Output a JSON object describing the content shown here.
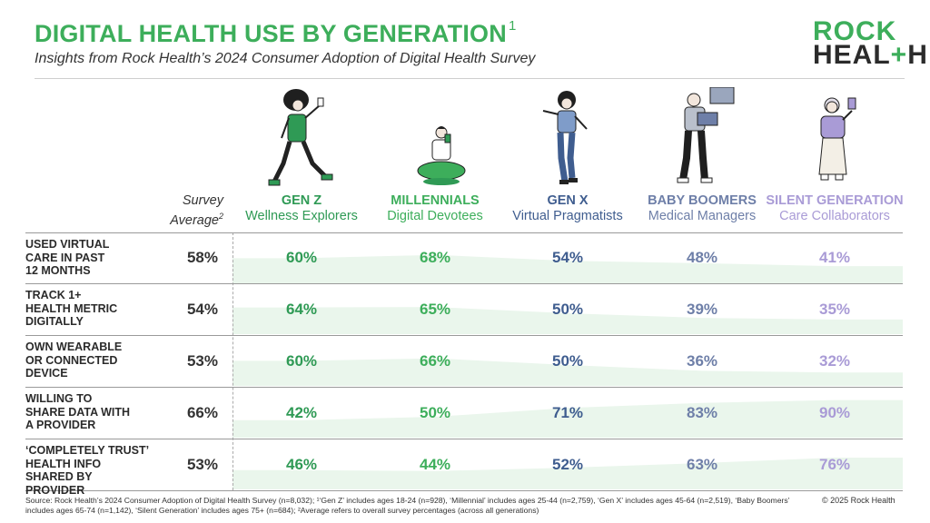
{
  "header": {
    "title": "DIGITAL HEALTH USE BY GENERATION",
    "title_sup": "1",
    "subtitle": "Insights from Rock Health’s 2024 Consumer Adoption of Digital Health Survey"
  },
  "logo": {
    "line1": "ROCK",
    "line2a": "HEAL",
    "line2b": "+",
    "line2c": "H"
  },
  "colors": {
    "gen_z": "#2f9a55",
    "millennials": "#3dae5b",
    "gen_x": "#3f5d8f",
    "baby_boomers": "#6e7fa8",
    "silent_generation": "#a99bd6",
    "band": "#eaf6ec"
  },
  "chart_data": {
    "type": "table",
    "survey_average_label_line1": "Survey",
    "survey_average_label_line2": "Average",
    "survey_average_sup": "2",
    "generations": [
      {
        "name": "GEN Z",
        "subtitle": "Wellness Explorers"
      },
      {
        "name": "MILLENNIALS",
        "subtitle": "Digital Devotees"
      },
      {
        "name": "GEN X",
        "subtitle": "Virtual Pragmatists"
      },
      {
        "name": "BABY BOOMERS",
        "subtitle": "Medical Managers"
      },
      {
        "name": "SILENT GENERATION",
        "subtitle": "Care Collaborators"
      }
    ],
    "rows": [
      {
        "label_lines": [
          "USED VIRTUAL",
          "CARE IN PAST",
          "12 MONTHS"
        ],
        "average": "58%",
        "values": [
          "60%",
          "68%",
          "54%",
          "48%",
          "41%"
        ],
        "numeric": [
          60,
          68,
          54,
          48,
          41
        ]
      },
      {
        "label_lines": [
          "TRACK 1+",
          "HEALTH METRIC",
          "DIGITALLY"
        ],
        "average": "54%",
        "values": [
          "64%",
          "65%",
          "50%",
          "39%",
          "35%"
        ],
        "numeric": [
          64,
          65,
          50,
          39,
          35
        ]
      },
      {
        "label_lines": [
          "OWN WEARABLE",
          "OR CONNECTED",
          "DEVICE"
        ],
        "average": "53%",
        "values": [
          "60%",
          "66%",
          "50%",
          "36%",
          "32%"
        ],
        "numeric": [
          60,
          66,
          50,
          36,
          32
        ]
      },
      {
        "label_lines": [
          "WILLING TO",
          "SHARE DATA WITH",
          "A PROVIDER"
        ],
        "average": "66%",
        "values": [
          "42%",
          "50%",
          "71%",
          "83%",
          "90%"
        ],
        "numeric": [
          42,
          50,
          71,
          83,
          90
        ]
      },
      {
        "label_lines": [
          "‘COMPLETELY TRUST’",
          "HEALTH INFO",
          "SHARED BY PROVIDER"
        ],
        "average": "53%",
        "values": [
          "46%",
          "44%",
          "52%",
          "63%",
          "76%"
        ],
        "numeric": [
          46,
          44,
          52,
          63,
          76
        ]
      }
    ]
  },
  "footer": {
    "source": "Source: Rock Health’s 2024 Consumer Adoption of Digital Health Survey (n=8,032); ¹‘Gen Z’ includes ages 18-24 (n=928), ‘Millennial’ includes ages 25-44 (n=2,759), ‘Gen X’ includes ages 45-64 (n=2,519), ‘Baby Boomers’ includes ages 65-74 (n=1,142), ‘Silent Generation’ includes ages 75+ (n=684); ²Average refers to overall survey percentages (across all generations)",
    "copyright": "© 2025 Rock Health"
  }
}
